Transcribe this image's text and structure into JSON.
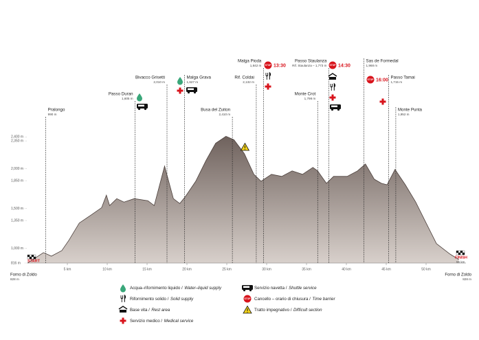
{
  "chart_data": {
    "type": "area",
    "x": [
      0,
      2,
      3,
      4.3,
      5.2,
      6.5,
      7.8,
      9.3,
      9.9,
      10.3,
      11.2,
      12.1,
      13.4,
      15.1,
      15.9,
      17.2,
      18.3,
      19.1,
      19.8,
      21.1,
      22.4,
      23.6,
      24.9,
      25.9,
      27.2,
      28.4,
      29.3,
      30.6,
      31.9,
      33.2,
      34.5,
      35.8,
      36.4,
      37.5,
      38.4,
      40.1,
      41.4,
      42.4,
      43.5,
      44.4,
      45.1,
      46.1,
      47.4,
      48.7,
      50,
      51.3,
      53,
      54.1
    ],
    "values": [
      816,
      947,
      903,
      973,
      1103,
      1320,
      1408,
      1512,
      1669,
      1538,
      1625,
      1582,
      1625,
      1599,
      1538,
      2034,
      1625,
      1564,
      1651,
      1843,
      2104,
      2321,
      2408,
      2365,
      2191,
      1930,
      1843,
      1930,
      1904,
      1973,
      1930,
      2017,
      1973,
      1817,
      1904,
      1904,
      1973,
      2060,
      1869,
      1817,
      1799,
      1991,
      1799,
      1582,
      1320,
      1060,
      929,
      860
    ],
    "fill": "#8c807a",
    "stroke": "#4a3e3a",
    "xlim": [
      0,
      55
    ],
    "ylim": [
      816,
      2420
    ],
    "xticks": [
      {
        "value": 5,
        "label": "5 km"
      },
      {
        "value": 10,
        "label": "10 km"
      },
      {
        "value": 15,
        "label": "15 km"
      },
      {
        "value": 20,
        "label": "20 km"
      },
      {
        "value": 25,
        "label": "25 km"
      },
      {
        "value": 30,
        "label": "30 km"
      },
      {
        "value": 35,
        "label": "35 km"
      },
      {
        "value": 40,
        "label": "40 km"
      },
      {
        "value": 45,
        "label": "45 km"
      },
      {
        "value": 50,
        "label": "50 km"
      }
    ],
    "yticks": [
      {
        "value": 816,
        "label": "816 m"
      },
      {
        "value": 1000,
        "label": "1,000 m"
      },
      {
        "value": 1350,
        "label": "1,350 m"
      },
      {
        "value": 1500,
        "label": "1,500 m"
      },
      {
        "value": 1850,
        "label": "1,850 m"
      },
      {
        "value": 2000,
        "label": "2,000 m"
      },
      {
        "value": 2350,
        "label": "2,350 m"
      },
      {
        "value": 2400,
        "label": "2,400 m"
      }
    ],
    "stop_label": "STOP",
    "start": {
      "label": "START",
      "place": "Forno di Zoldo",
      "elevation": "828 m"
    },
    "finish": {
      "label": "FINISH",
      "distance": "55 km",
      "place": "Forno di Zoldo",
      "elevation": "828 m"
    },
    "waypoints": [
      {
        "name": "Pralongo",
        "elevation": "990 m",
        "km": 2.3,
        "icons": []
      },
      {
        "name": "Passo Duran",
        "elevation": "1,605 m",
        "km": 13.5,
        "icons": [
          "water",
          "shuttle"
        ]
      },
      {
        "name": "Bivacco Grisetti",
        "elevation": "2,010 m",
        "km": 17.5,
        "icons": []
      },
      {
        "name": "Malga Grava",
        "elevation": "1,627 m",
        "km": 19.7,
        "icons": [
          "water",
          "medical",
          "shuttle"
        ]
      },
      {
        "name": "Busa del Zuiton",
        "elevation": "2,410 m",
        "km": 25.7,
        "icons": []
      },
      {
        "name": "Rif. Coldai",
        "elevation": "2,132 m",
        "km": 28.7,
        "icons": []
      },
      {
        "name": "Malga Pioda",
        "elevation": "1,842 m",
        "km": 29.6,
        "icons": [
          "stop",
          "food",
          "medical"
        ],
        "cutoff": "13:30"
      },
      {
        "name": "Monte Crot",
        "elevation": "1,798 m",
        "km": 36.4,
        "icons": []
      },
      {
        "name": "Passo Staulanza",
        "elevation": "Rif. Staulanza – 1,773 m",
        "km": 37.8,
        "icons": [
          "stop",
          "rest",
          "food",
          "medical",
          "shuttle"
        ],
        "cutoff": "14:30"
      },
      {
        "name": "Sas de Formedal",
        "elevation": "1,968 m",
        "km": 42.2,
        "icons": []
      },
      {
        "name": "Passo Tamai",
        "elevation": "1,715 m",
        "km": 45.3,
        "icons": [
          "stop",
          "medical"
        ],
        "cutoff": "16:00"
      },
      {
        "name": "Monte Punta",
        "elevation": "1,952 m",
        "km": 46.2,
        "icons": []
      }
    ],
    "difficult_km": 26.5,
    "legend": [
      {
        "icon": "water",
        "it": "Acqua–rifornimento liquido /",
        "en": "Water–liquid supply"
      },
      {
        "icon": "food",
        "it": "Rifornimento solido /",
        "en": "Solid supply"
      },
      {
        "icon": "rest",
        "it": "Base vita /",
        "en": "Rest area"
      },
      {
        "icon": "medical",
        "it": "Servizio medico /",
        "en": "Medical service"
      },
      {
        "icon": "shuttle",
        "it": "Servizio navetta /",
        "en": "Shuttle service"
      },
      {
        "icon": "stop",
        "it": "Cancello – orario di chiusura /",
        "en": "Time barrier"
      },
      {
        "icon": "warning",
        "it": "Tratto impegnativo /",
        "en": "Difficult section"
      }
    ]
  }
}
